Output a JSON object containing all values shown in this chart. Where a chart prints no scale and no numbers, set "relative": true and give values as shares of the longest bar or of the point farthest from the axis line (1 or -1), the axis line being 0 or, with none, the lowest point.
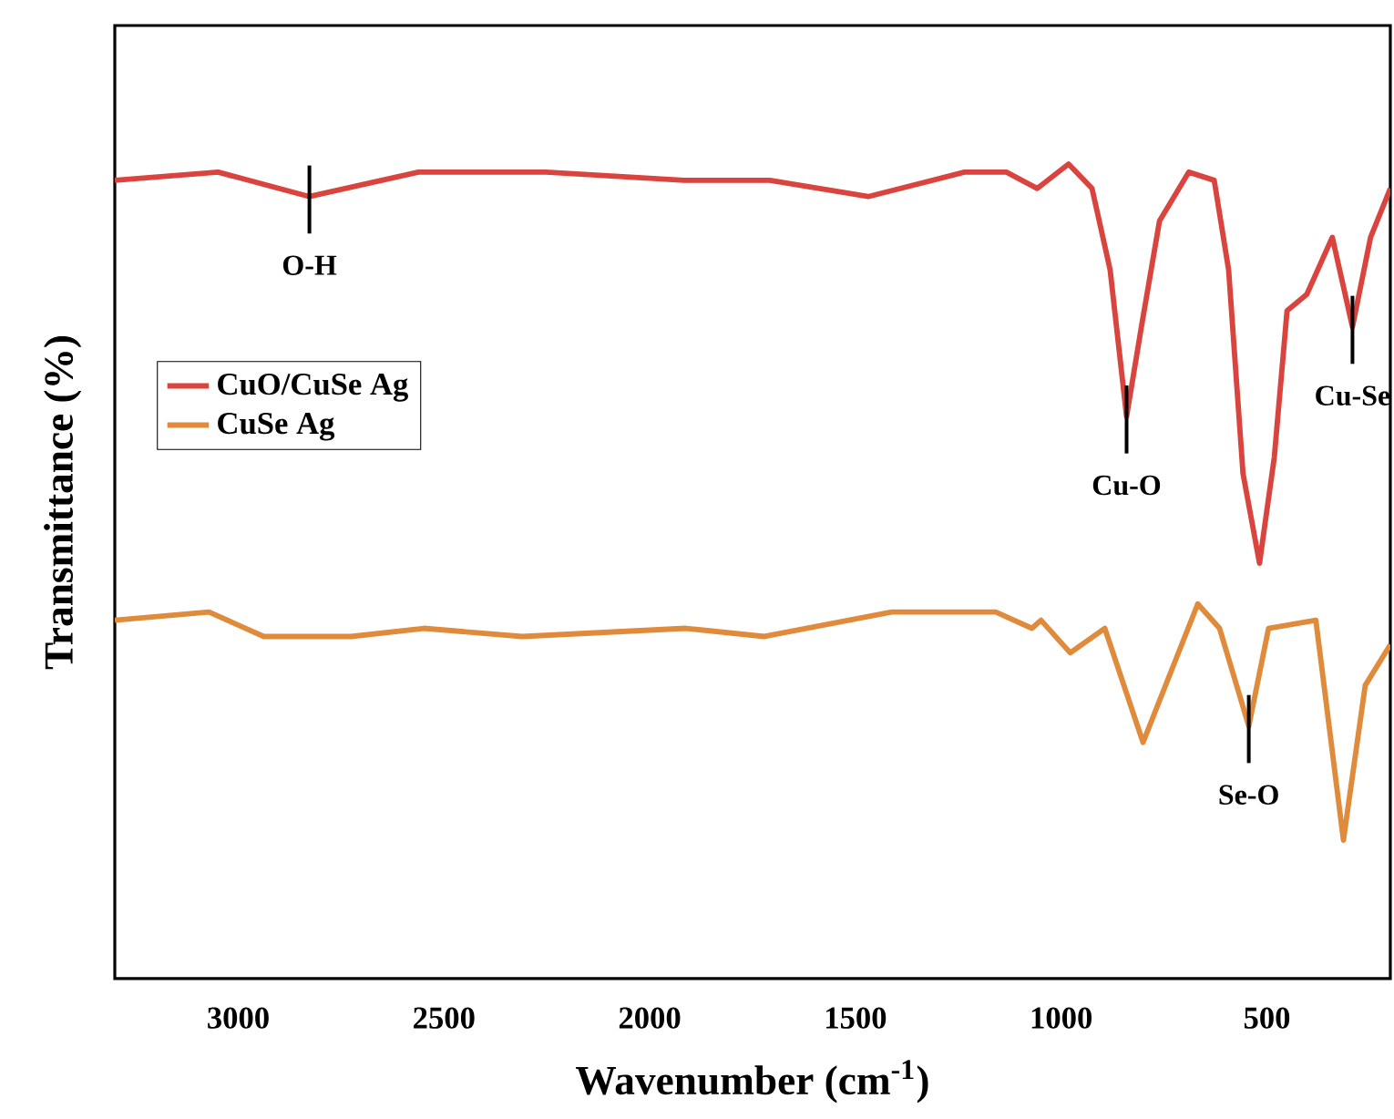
{
  "chart_data": {
    "type": "line",
    "relative": true,
    "xlabel": "Wavenumber (cm$^{-1}$)",
    "ylabel": "Transmittance (%)",
    "xlim": [
      3300,
      200
    ],
    "xticks": [
      3000,
      2500,
      2000,
      1500,
      1000,
      500
    ],
    "tick_labels": "x",
    "legend": "left",
    "grid": false,
    "series": [
      {
        "name": "CuO/CuSe Ag",
        "color": "#d9443f",
        "x": [
          3300,
          3049,
          2827,
          2562,
          2252,
          1916,
          1708,
          1469,
          1235,
          1133,
          1058,
          982,
          925,
          881,
          841,
          805,
          761,
          690,
          628,
          593,
          558,
          518,
          482,
          451,
          403,
          341,
          292,
          248,
          200
        ],
        "values": [
          0.98,
          0.99,
          0.96,
          0.99,
          0.99,
          0.98,
          0.98,
          0.96,
          0.99,
          0.99,
          0.97,
          1.0,
          0.97,
          0.87,
          0.69,
          0.8,
          0.93,
          0.99,
          0.98,
          0.87,
          0.62,
          0.51,
          0.64,
          0.82,
          0.84,
          0.91,
          0.8,
          0.91,
          0.97
        ]
      },
      {
        "name": "CuSe Ag",
        "color": "#e08a3c",
        "x": [
          3300,
          3071,
          2938,
          2726,
          2549,
          2310,
          1912,
          1721,
          1412,
          1159,
          1071,
          1049,
          978,
          894,
          801,
          668,
          615,
          544,
          496,
          381,
          314,
          261,
          200
        ],
        "values": [
          0.44,
          0.45,
          0.42,
          0.42,
          0.43,
          0.42,
          0.43,
          0.42,
          0.45,
          0.45,
          0.43,
          0.44,
          0.4,
          0.43,
          0.29,
          0.46,
          0.43,
          0.31,
          0.43,
          0.44,
          0.17,
          0.36,
          0.41
        ]
      }
    ],
    "annotations": [
      {
        "text": "O-H",
        "x": 2827,
        "y": 0.96
      },
      {
        "text": "Cu-O",
        "x": 841,
        "y": 0.69
      },
      {
        "text": "Cu-Se",
        "x": 292,
        "y": 0.8
      },
      {
        "text": "Se-O",
        "x": 544,
        "y": 0.31
      }
    ]
  }
}
